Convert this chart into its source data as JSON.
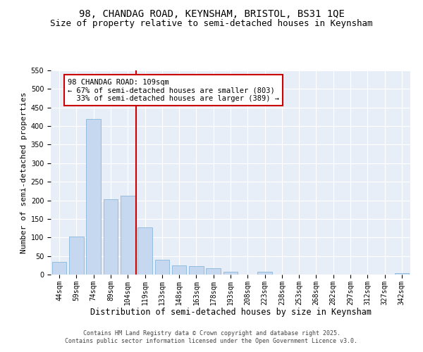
{
  "title1": "98, CHANDAG ROAD, KEYNSHAM, BRISTOL, BS31 1QE",
  "title2": "Size of property relative to semi-detached houses in Keynsham",
  "xlabel": "Distribution of semi-detached houses by size in Keynsham",
  "ylabel": "Number of semi-detached properties",
  "categories": [
    "44sqm",
    "59sqm",
    "74sqm",
    "89sqm",
    "104sqm",
    "119sqm",
    "133sqm",
    "148sqm",
    "163sqm",
    "178sqm",
    "193sqm",
    "208sqm",
    "223sqm",
    "238sqm",
    "253sqm",
    "268sqm",
    "282sqm",
    "297sqm",
    "312sqm",
    "327sqm",
    "342sqm"
  ],
  "values": [
    35,
    102,
    420,
    203,
    213,
    127,
    40,
    25,
    22,
    18,
    8,
    0,
    7,
    0,
    0,
    0,
    0,
    0,
    0,
    0,
    3
  ],
  "bar_color": "#c5d8f0",
  "bar_edge_color": "#7aaed6",
  "vline_x": 4.5,
  "vline_color": "#cc0000",
  "annotation_line1": "98 CHANDAG ROAD: 109sqm",
  "annotation_line2": "← 67% of semi-detached houses are smaller (803)",
  "annotation_line3": "  33% of semi-detached houses are larger (389) →",
  "annotation_box_color": "#cc0000",
  "annotation_fill": "#ffffff",
  "ylim": [
    0,
    550
  ],
  "yticks": [
    0,
    50,
    100,
    150,
    200,
    250,
    300,
    350,
    400,
    450,
    500,
    550
  ],
  "bg_color": "#e8eef8",
  "footer1": "Contains HM Land Registry data © Crown copyright and database right 2025.",
  "footer2": "Contains public sector information licensed under the Open Government Licence v3.0.",
  "title1_fontsize": 10,
  "title2_fontsize": 9,
  "xlabel_fontsize": 8.5,
  "ylabel_fontsize": 8,
  "tick_fontsize": 7,
  "annotation_fontsize": 7.5,
  "footer_fontsize": 6
}
